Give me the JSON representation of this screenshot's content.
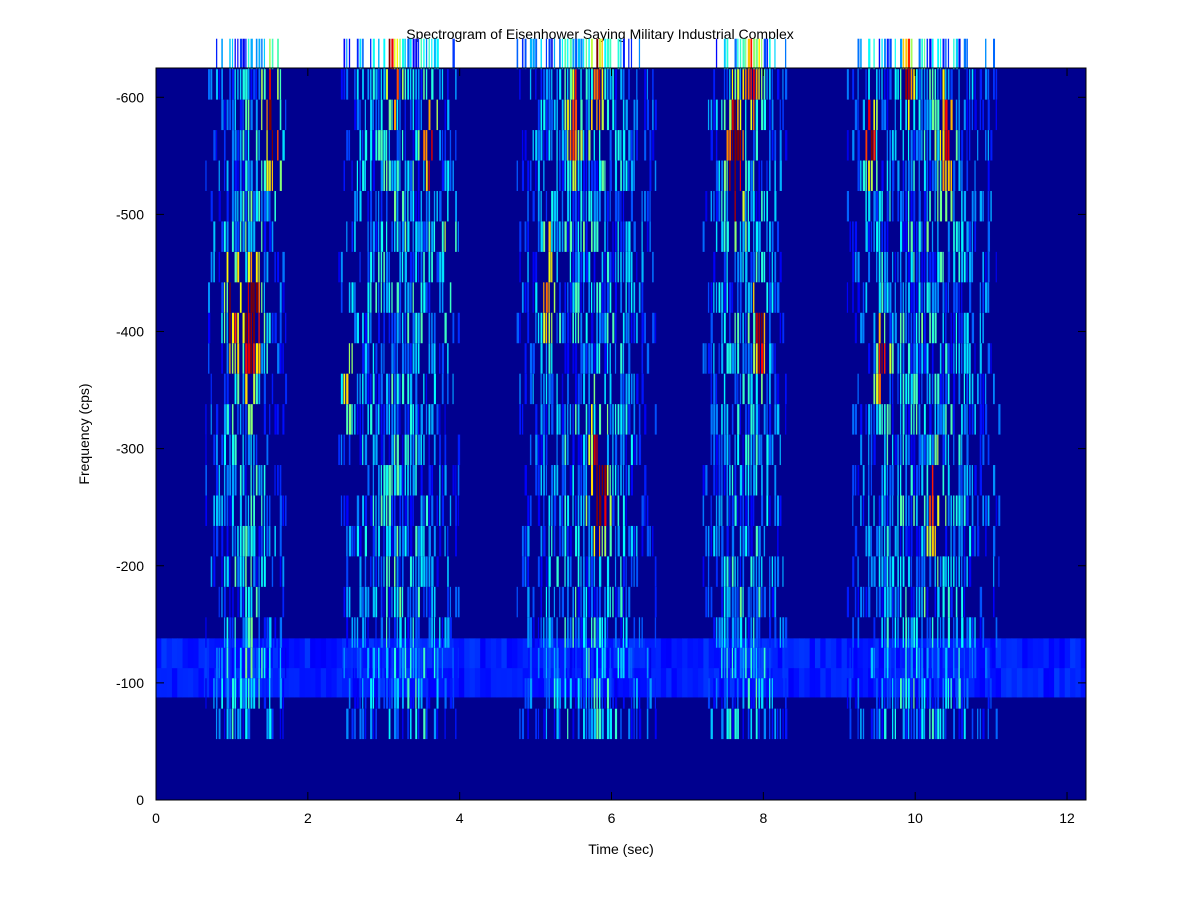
{
  "chart_data": {
    "type": "heatmap",
    "title": "Spectrogram of Eisenhower Saying Military Industrial Complex",
    "xlabel": "Time (sec)",
    "ylabel": "Frequency (cps)",
    "xlim": [
      0,
      12.25
    ],
    "ylim": [
      0,
      -625
    ],
    "x_ticks": [
      0,
      2,
      4,
      6,
      8,
      10,
      12
    ],
    "y_ticks": [
      0,
      -100,
      -200,
      -300,
      -400,
      -500,
      -600
    ],
    "colormap": "jet",
    "background_color": "#00008f",
    "grid": false,
    "speech_segments": [
      {
        "start": 0.65,
        "end": 1.7,
        "hot": [
          [
            1.0,
            -420
          ],
          [
            1.2,
            -400
          ],
          [
            1.3,
            -420
          ],
          [
            1.5,
            -600
          ],
          [
            1.55,
            -560
          ]
        ]
      },
      {
        "start": 2.4,
        "end": 4.0,
        "hot": [
          [
            2.5,
            -370
          ],
          [
            3.1,
            -620
          ],
          [
            3.6,
            -560
          ],
          [
            3.85,
            -460
          ]
        ]
      },
      {
        "start": 4.75,
        "end": 6.6,
        "hot": [
          [
            5.15,
            -440
          ],
          [
            5.5,
            -580
          ],
          [
            5.8,
            -620
          ],
          [
            5.85,
            -260
          ],
          [
            5.8,
            -280
          ]
        ]
      },
      {
        "start": 7.2,
        "end": 8.3,
        "hot": [
          [
            7.6,
            -540
          ],
          [
            7.85,
            -620
          ],
          [
            7.95,
            -400
          ],
          [
            7.65,
            -560
          ]
        ]
      },
      {
        "start": 9.1,
        "end": 11.1,
        "hot": [
          [
            9.4,
            -560
          ],
          [
            9.55,
            -370
          ],
          [
            10.25,
            -250
          ],
          [
            10.4,
            -560
          ],
          [
            9.9,
            -620
          ]
        ]
      }
    ]
  }
}
